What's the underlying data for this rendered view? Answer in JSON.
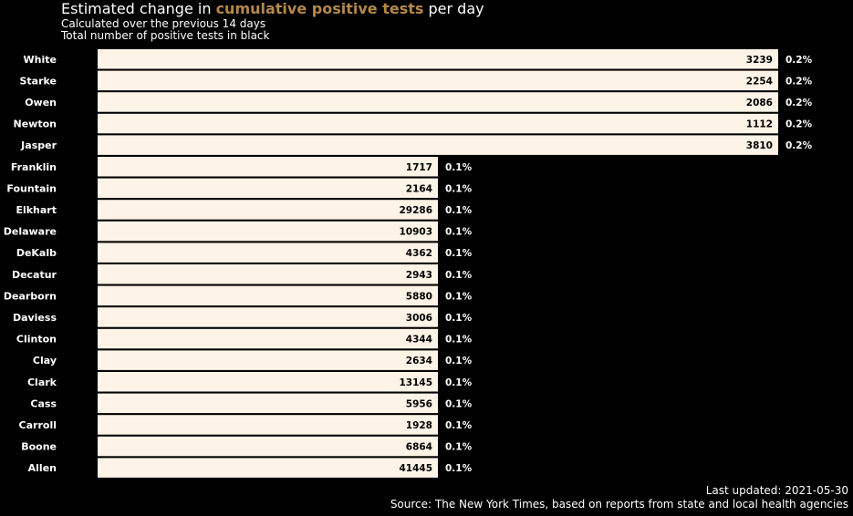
{
  "header": {
    "title_prefix": "Estimated change in ",
    "title_highlight": "cumulative positive tests",
    "title_suffix": " per day",
    "subtitle": "Calculated over the previous 14 days",
    "subtitle2": "Total number of positive tests in black"
  },
  "footer": {
    "updated": "Last updated: 2021-05-30",
    "source": "Source: The New York Times, based on reports from state and local health agencies"
  },
  "colors": {
    "background": "#000000",
    "bar": "#fdf3e7",
    "highlight": "#b5884a"
  },
  "chart_data": {
    "type": "bar",
    "orientation": "horizontal",
    "categories": [
      "White",
      "Starke",
      "Owen",
      "Newton",
      "Jasper",
      "Franklin",
      "Fountain",
      "Elkhart",
      "Delaware",
      "DeKalb",
      "Decatur",
      "Dearborn",
      "Daviess",
      "Clinton",
      "Clay",
      "Clark",
      "Cass",
      "Carroll",
      "Boone",
      "Allen"
    ],
    "values": [
      0.2,
      0.2,
      0.2,
      0.2,
      0.2,
      0.1,
      0.1,
      0.1,
      0.1,
      0.1,
      0.1,
      0.1,
      0.1,
      0.1,
      0.1,
      0.1,
      0.1,
      0.1,
      0.1,
      0.1
    ],
    "value_labels": [
      "0.2%",
      "0.2%",
      "0.2%",
      "0.2%",
      "0.2%",
      "0.1%",
      "0.1%",
      "0.1%",
      "0.1%",
      "0.1%",
      "0.1%",
      "0.1%",
      "0.1%",
      "0.1%",
      "0.1%",
      "0.1%",
      "0.1%",
      "0.1%",
      "0.1%",
      "0.1%"
    ],
    "totals": [
      "3239",
      "2254",
      "2086",
      "1112",
      "3810",
      "1717",
      "2164",
      "29286",
      "10903",
      "4362",
      "2943",
      "5880",
      "3006",
      "4344",
      "2634",
      "13145",
      "5956",
      "1928",
      "6864",
      "41445"
    ],
    "xlim": [
      0,
      0.2
    ]
  }
}
